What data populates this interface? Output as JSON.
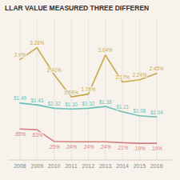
{
  "chart_data": {
    "type": "line",
    "title": "LLAR VALUE MEASURED THREE DIFFEREN",
    "x": [
      2008,
      2009,
      2010,
      2011,
      2012,
      2013,
      2014,
      2015,
      2016
    ],
    "series": [
      {
        "color": "#6bbfb8",
        "values": [
          1.49,
          1.43,
          1.32,
          1.3,
          1.32,
          1.38,
          1.21,
          1.08,
          1.04
        ],
        "value_labels": [
          "$1.49",
          "$1.43",
          "$1.32",
          "$1.30",
          "$1.32",
          "$1.38",
          "$1.21",
          "$1.08",
          "$1.04"
        ]
      },
      {
        "color": "#c9a84c",
        "values": [
          2.9,
          3.28,
          2.41,
          1.69,
          1.78,
          3.04,
          2.17,
          2.24,
          2.45
        ],
        "value_labels": [
          "2.9%",
          "3.28%",
          "2.41%",
          "1.69%",
          "1.78%",
          "3.04%",
          "2.17%",
          "2.24%",
          "2.45%"
        ]
      },
      {
        "color": "#d47f7f",
        "values": [
          0.65,
          0.63,
          0.25,
          0.24,
          0.24,
          0.24,
          0.21,
          0.19,
          0.19
        ],
        "value_labels": [
          ".65%",
          ".63%",
          ".25%",
          ".24%",
          ".24%",
          ".24%",
          ".21%",
          ".19%",
          ".19%"
        ]
      }
    ],
    "xlim": [
      2007.3,
      2016.9
    ],
    "xticks": [
      2008,
      2009,
      2010,
      2011,
      2012,
      2013,
      2014,
      2015,
      2016
    ],
    "ylim": [
      -0.35,
      4.2
    ],
    "grid": true,
    "data_labels": true,
    "tick_labels": "x"
  }
}
